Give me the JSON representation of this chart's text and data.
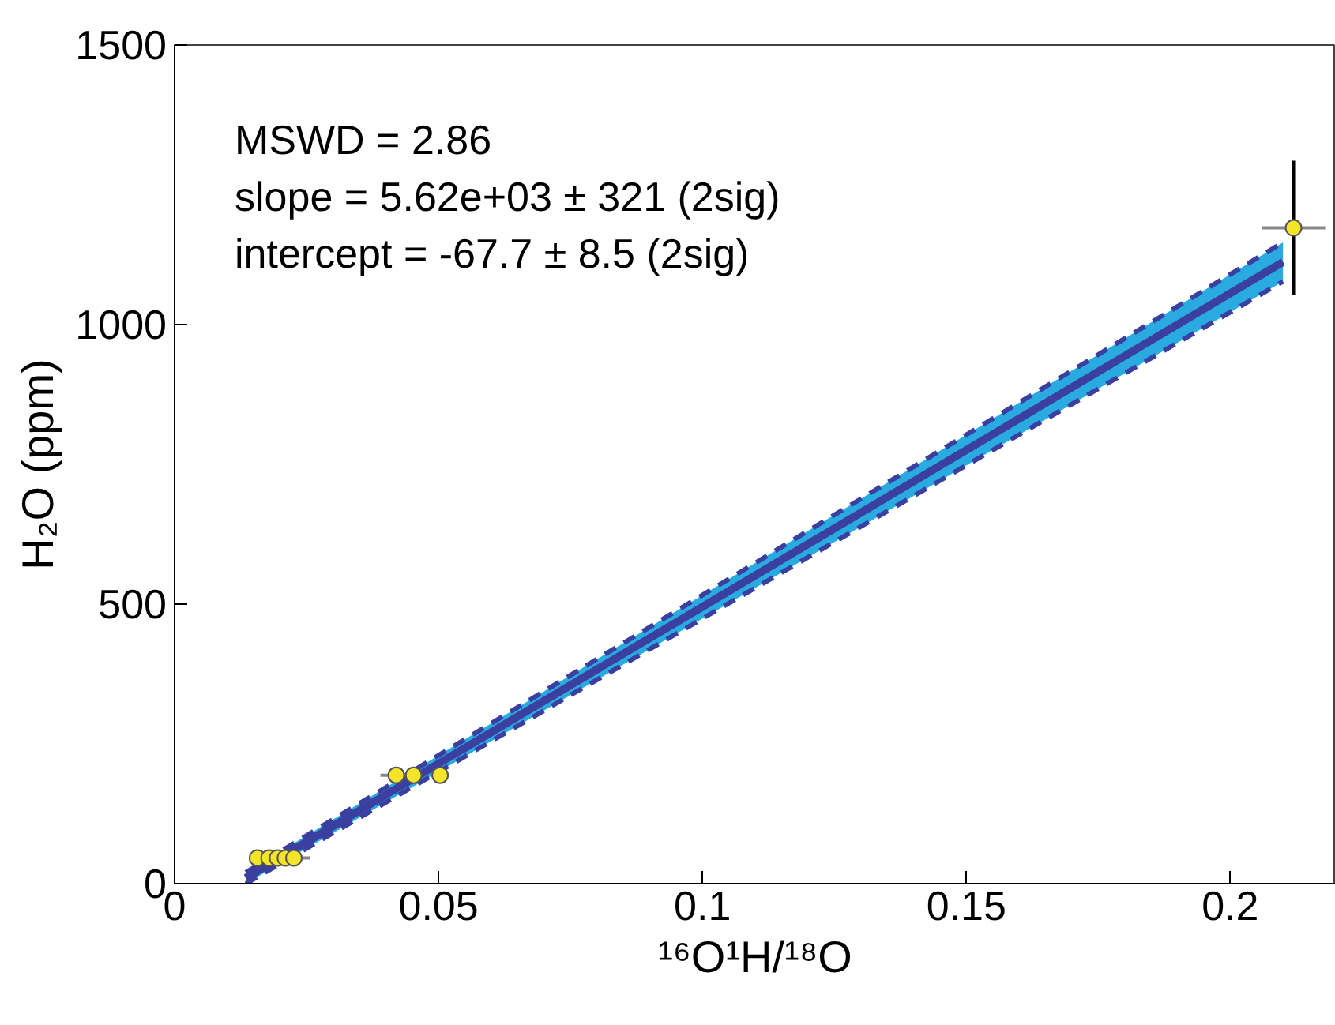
{
  "chart_data": {
    "type": "scatter",
    "xlabel": "¹⁶O¹H/¹⁸O",
    "ylabel": "H₂O (ppm)",
    "xlim": [
      0,
      0.22
    ],
    "ylim": [
      0,
      1500
    ],
    "xticks": [
      0,
      0.05,
      0.1,
      0.15,
      0.2
    ],
    "yticks": [
      0,
      500,
      1000,
      1500
    ],
    "grid": false,
    "marker": "circle",
    "annotations": [
      "MSWD = 2.86",
      "slope = 5.62e+03 ± 321  (2sig)",
      "intercept = -67.7 ± 8.5  (2sig)"
    ],
    "series": [
      {
        "type": "line",
        "color": "#3a3fa0",
        "x": [
          0.0135,
          0.21
        ],
        "values": [
          10,
          1112
        ],
        "lower": [
          0,
          1077
        ],
        "upper": [
          20,
          1147
        ],
        "line_style": "solid",
        "marker": "none"
      },
      {
        "type": "line",
        "color": "#3a3fa0",
        "x": [
          0.0135,
          0.21
        ],
        "values": [
          0,
          1077
        ],
        "line_style": "dashed",
        "marker": "none"
      },
      {
        "type": "line",
        "color": "#3a3fa0",
        "x": [
          0.0135,
          0.21
        ],
        "values": [
          20,
          1147
        ],
        "line_style": "dashed",
        "marker": "none"
      },
      {
        "color": "#f5e52a",
        "x": [
          0.0157,
          0.0179,
          0.0195,
          0.021,
          0.0226,
          0.042,
          0.0453,
          0.0503,
          0.212
        ],
        "values": [
          46,
          46,
          46,
          46,
          46,
          194,
          194,
          194,
          1173
        ],
        "errors": [
          null,
          null,
          null,
          null,
          null,
          null,
          null,
          null,
          120
        ],
        "xerrors": [
          null,
          null,
          null,
          null,
          0.003,
          0.003,
          null,
          null,
          0.006
        ]
      }
    ]
  }
}
